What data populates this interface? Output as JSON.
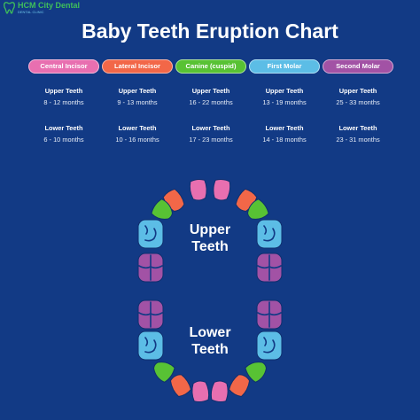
{
  "logo": {
    "name": "HCM City Dental",
    "tagline": "DENTAL CLINIC"
  },
  "title": "Baby Teeth Eruption Chart",
  "labels": {
    "upper": "Upper Teeth",
    "lower": "Lower Teeth"
  },
  "categories": [
    {
      "name": "Central Incisor",
      "color": "#e86fb0",
      "upper": "8 - 12 months",
      "lower": "6 - 10 months"
    },
    {
      "name": "Lateral Incisor",
      "color": "#f26748",
      "upper": "9 - 13 months",
      "lower": "10 - 16 months"
    },
    {
      "name": "Canine (cuspid)",
      "color": "#58c234",
      "upper": "16 - 22 months",
      "lower": "17 - 23 months"
    },
    {
      "name": "First Molar",
      "color": "#5cbde6",
      "upper": "13 - 19 months",
      "lower": "14 - 18 months"
    },
    {
      "name": "Second Molar",
      "color": "#a252a5",
      "upper": "25 - 33 months",
      "lower": "23 - 31 months"
    }
  ],
  "arch": {
    "upper_label": [
      "Upper",
      "Teeth"
    ],
    "lower_label": [
      "Lower",
      "Teeth"
    ]
  }
}
